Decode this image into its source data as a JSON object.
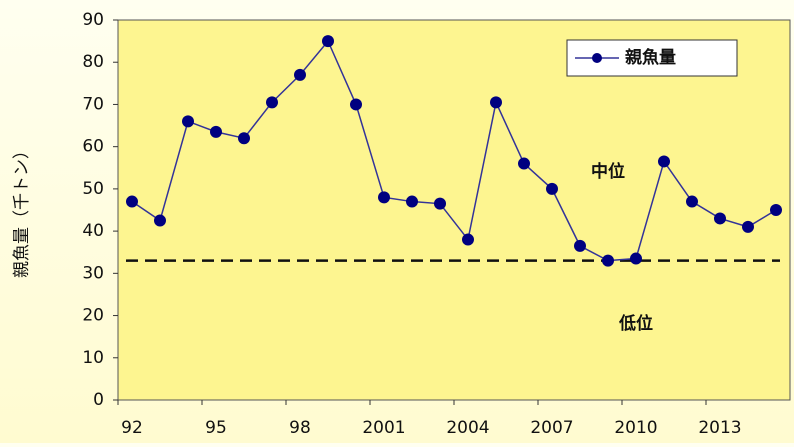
{
  "chart_data": {
    "type": "line",
    "y_label": "親魚量（千トン）",
    "categories": [
      "92",
      null,
      null,
      "95",
      null,
      null,
      "98",
      null,
      null,
      "2001",
      null,
      null,
      "2004",
      null,
      null,
      "2007",
      null,
      null,
      "2010",
      null,
      null,
      "2013",
      null,
      null
    ],
    "series": [
      {
        "name": "親魚量",
        "color": "#000080",
        "values": [
          47,
          42.5,
          66,
          63.5,
          62,
          70.5,
          77,
          85,
          70,
          48,
          47,
          46.5,
          38,
          70.5,
          56,
          50,
          36.5,
          33,
          33.5,
          56.5,
          47,
          43,
          41,
          45
        ]
      }
    ],
    "threshold": 33,
    "annotations": [
      {
        "text": "中位",
        "x": 17,
        "y": 54
      },
      {
        "text": "低位",
        "x": 18,
        "y": 18
      }
    ],
    "ylim": [
      0,
      90
    ],
    "yticks": [
      0,
      10,
      20,
      30,
      40,
      50,
      60,
      70,
      80,
      90
    ],
    "legend": "top-right",
    "plot_color": "#fdf590"
  }
}
